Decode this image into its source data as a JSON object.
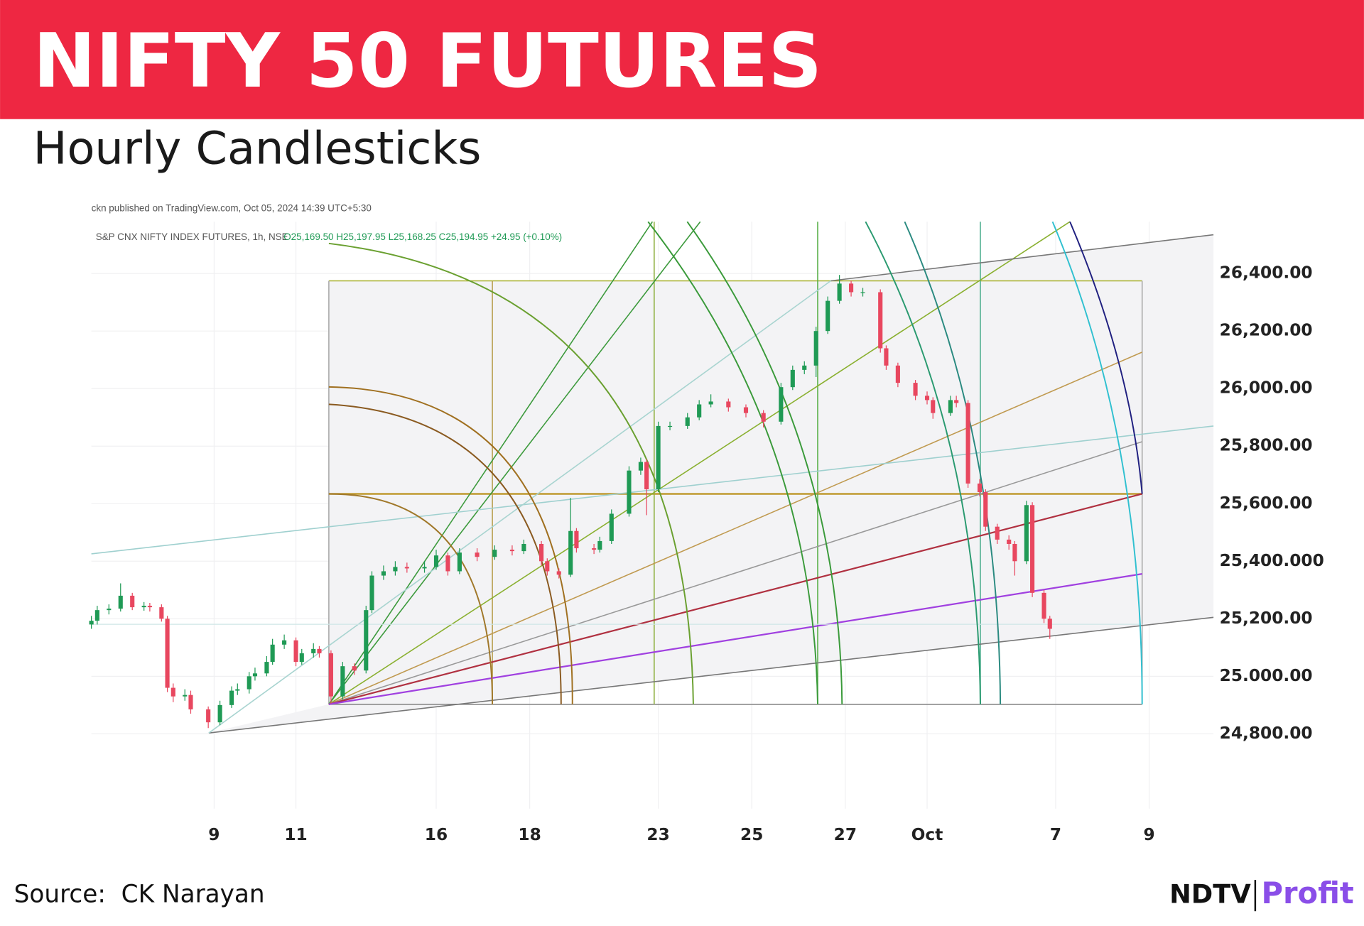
{
  "chart_data": {
    "type": "candlestick",
    "title": "NIFTY 50 FUTURES",
    "subtitle": "Hourly Candlesticks",
    "published": "ckn published on TradingView.com, Oct 05, 2024 14:39 UTC+5:30",
    "symbol": "S&P CNX NIFTY INDEX FUTURES, 1h, NSE",
    "ohlc_legend": "O25,169.50 H25,197.95 L25,168.25 C25,194.95 +24.95 (+0.10%)",
    "source": "Source:  CK Narayan",
    "brand": "NDTV",
    "brand_sub": "Profit",
    "up_color": "#1f9a55",
    "down_color": "#e8475f",
    "xlim": [
      0,
      192
    ],
    "ylim": [
      24540,
      26580
    ],
    "xticks": [
      {
        "value": 21,
        "label": "9"
      },
      {
        "value": 35,
        "label": "11"
      },
      {
        "value": 59,
        "label": "16"
      },
      {
        "value": 75,
        "label": "18"
      },
      {
        "value": 97,
        "label": "23"
      },
      {
        "value": 113,
        "label": "25"
      },
      {
        "value": 129,
        "label": "27"
      },
      {
        "value": 143,
        "label": "Oct"
      },
      {
        "value": 165,
        "label": "7"
      },
      {
        "value": 181,
        "label": "9"
      }
    ],
    "yticks": [
      {
        "value": 26400,
        "label": "26,400.00"
      },
      {
        "value": 26200,
        "label": "26,200.00"
      },
      {
        "value": 26000,
        "label": "26,000.00"
      },
      {
        "value": 25800,
        "label": "25,800.00"
      },
      {
        "value": 25600,
        "label": "25,600.00"
      },
      {
        "value": 25400,
        "label": "25,400.000"
      },
      {
        "value": 25200,
        "label": "25,200.00"
      },
      {
        "value": 25000,
        "label": "25.000.00"
      },
      {
        "value": 24800,
        "label": "24,800.00"
      }
    ],
    "x": [
      0,
      1,
      3,
      5,
      7,
      9,
      10,
      12,
      13,
      14,
      16,
      17,
      20,
      22,
      24,
      25,
      27,
      28,
      30,
      31,
      33,
      35,
      36,
      38,
      39,
      41,
      43,
      45,
      47,
      48,
      50,
      52,
      54,
      57,
      59,
      61,
      63,
      66,
      69,
      72,
      74,
      77,
      78,
      80,
      82,
      83,
      86,
      87,
      89,
      92,
      94,
      95,
      97,
      99,
      102,
      104,
      106,
      109,
      112,
      115,
      118,
      120,
      122,
      124,
      126,
      128,
      130,
      132,
      135,
      136,
      138,
      141,
      143,
      144,
      147,
      148,
      150,
      152,
      153,
      155,
      157,
      158,
      160,
      161,
      163,
      164
    ],
    "open": [
      25180,
      25193,
      25230,
      25235,
      25280,
      25240,
      25245,
      25240,
      25200,
      24960,
      24930,
      24935,
      24885,
      24840,
      24900,
      24950,
      24955,
      25000,
      25010,
      25050,
      25110,
      25125,
      25050,
      25080,
      25095,
      25080,
      24930,
      25035,
      25020,
      25230,
      25350,
      25365,
      25380,
      25375,
      25380,
      25420,
      25365,
      25430,
      25415,
      25440,
      25435,
      25460,
      25400,
      25365,
      25353,
      25505,
      25445,
      25440,
      25470,
      25565,
      25715,
      25745,
      25650,
      25870,
      25870,
      25900,
      25945,
      25955,
      25935,
      25915,
      25885,
      26005,
      26065,
      26080,
      26200,
      26305,
      26365,
      26335,
      26335,
      26140,
      26080,
      26020,
      25975,
      25960,
      25915,
      25960,
      25950,
      25670,
      25640,
      25520,
      25475,
      25460,
      25400,
      25595,
      25290,
      25200
    ],
    "high": [
      25210,
      25245,
      25250,
      25323,
      25290,
      25258,
      25255,
      25250,
      25210,
      24975,
      24955,
      24950,
      24895,
      24915,
      24965,
      24975,
      25015,
      25030,
      25070,
      25130,
      25145,
      25135,
      25095,
      25115,
      25105,
      25090,
      25050,
      25045,
      25245,
      25365,
      25385,
      25400,
      25395,
      25400,
      25440,
      25430,
      25445,
      25445,
      25455,
      25455,
      25475,
      25470,
      25410,
      25375,
      25620,
      25515,
      25460,
      25485,
      25580,
      25730,
      25760,
      25755,
      25885,
      25885,
      25915,
      25960,
      25980,
      25965,
      25945,
      25925,
      26020,
      26080,
      26095,
      26215,
      26320,
      26395,
      26375,
      26350,
      26345,
      26150,
      26090,
      26030,
      25990,
      25970,
      25975,
      25975,
      25960,
      25685,
      25650,
      25530,
      25490,
      25470,
      25610,
      25605,
      25300,
      25210
    ],
    "low": [
      25165,
      25180,
      25215,
      25225,
      25230,
      25228,
      25225,
      25190,
      24945,
      24910,
      24915,
      24870,
      24820,
      24830,
      24890,
      24935,
      24940,
      24985,
      25000,
      25040,
      25095,
      25035,
      25040,
      25065,
      25065,
      24905,
      24920,
      25005,
      25010,
      25220,
      25335,
      25350,
      25360,
      25360,
      25370,
      25350,
      25355,
      25400,
      25405,
      25420,
      25425,
      25385,
      25350,
      25340,
      25345,
      25430,
      25425,
      25430,
      25460,
      25555,
      25700,
      25560,
      25640,
      25855,
      25860,
      25890,
      25935,
      25920,
      25900,
      25865,
      25875,
      25995,
      26050,
      26040,
      26190,
      26295,
      26320,
      26320,
      26125,
      26065,
      26005,
      25960,
      25945,
      25895,
      25905,
      25935,
      25655,
      25625,
      25505,
      25460,
      25440,
      25350,
      25390,
      25275,
      25185,
      25130
    ],
    "close": [
      25193,
      25230,
      25235,
      25280,
      25240,
      25245,
      25240,
      25200,
      24960,
      24930,
      24935,
      24885,
      24840,
      24900,
      24950,
      24955,
      25000,
      25010,
      25050,
      25110,
      25125,
      25050,
      25080,
      25095,
      25080,
      24930,
      25035,
      25020,
      25230,
      25350,
      25365,
      25380,
      25375,
      25380,
      25420,
      25365,
      25430,
      25415,
      25440,
      25435,
      25460,
      25400,
      25365,
      25353,
      25505,
      25445,
      25440,
      25470,
      25565,
      25715,
      25745,
      25650,
      25870,
      25870,
      25900,
      25945,
      25955,
      25935,
      25915,
      25885,
      26005,
      26065,
      26080,
      26200,
      26305,
      26365,
      26335,
      26335,
      26140,
      26080,
      26020,
      25975,
      25960,
      25915,
      25960,
      25950,
      25670,
      25640,
      25520,
      25475,
      25460,
      25400,
      25595,
      25290,
      25200,
      25165
    ]
  }
}
